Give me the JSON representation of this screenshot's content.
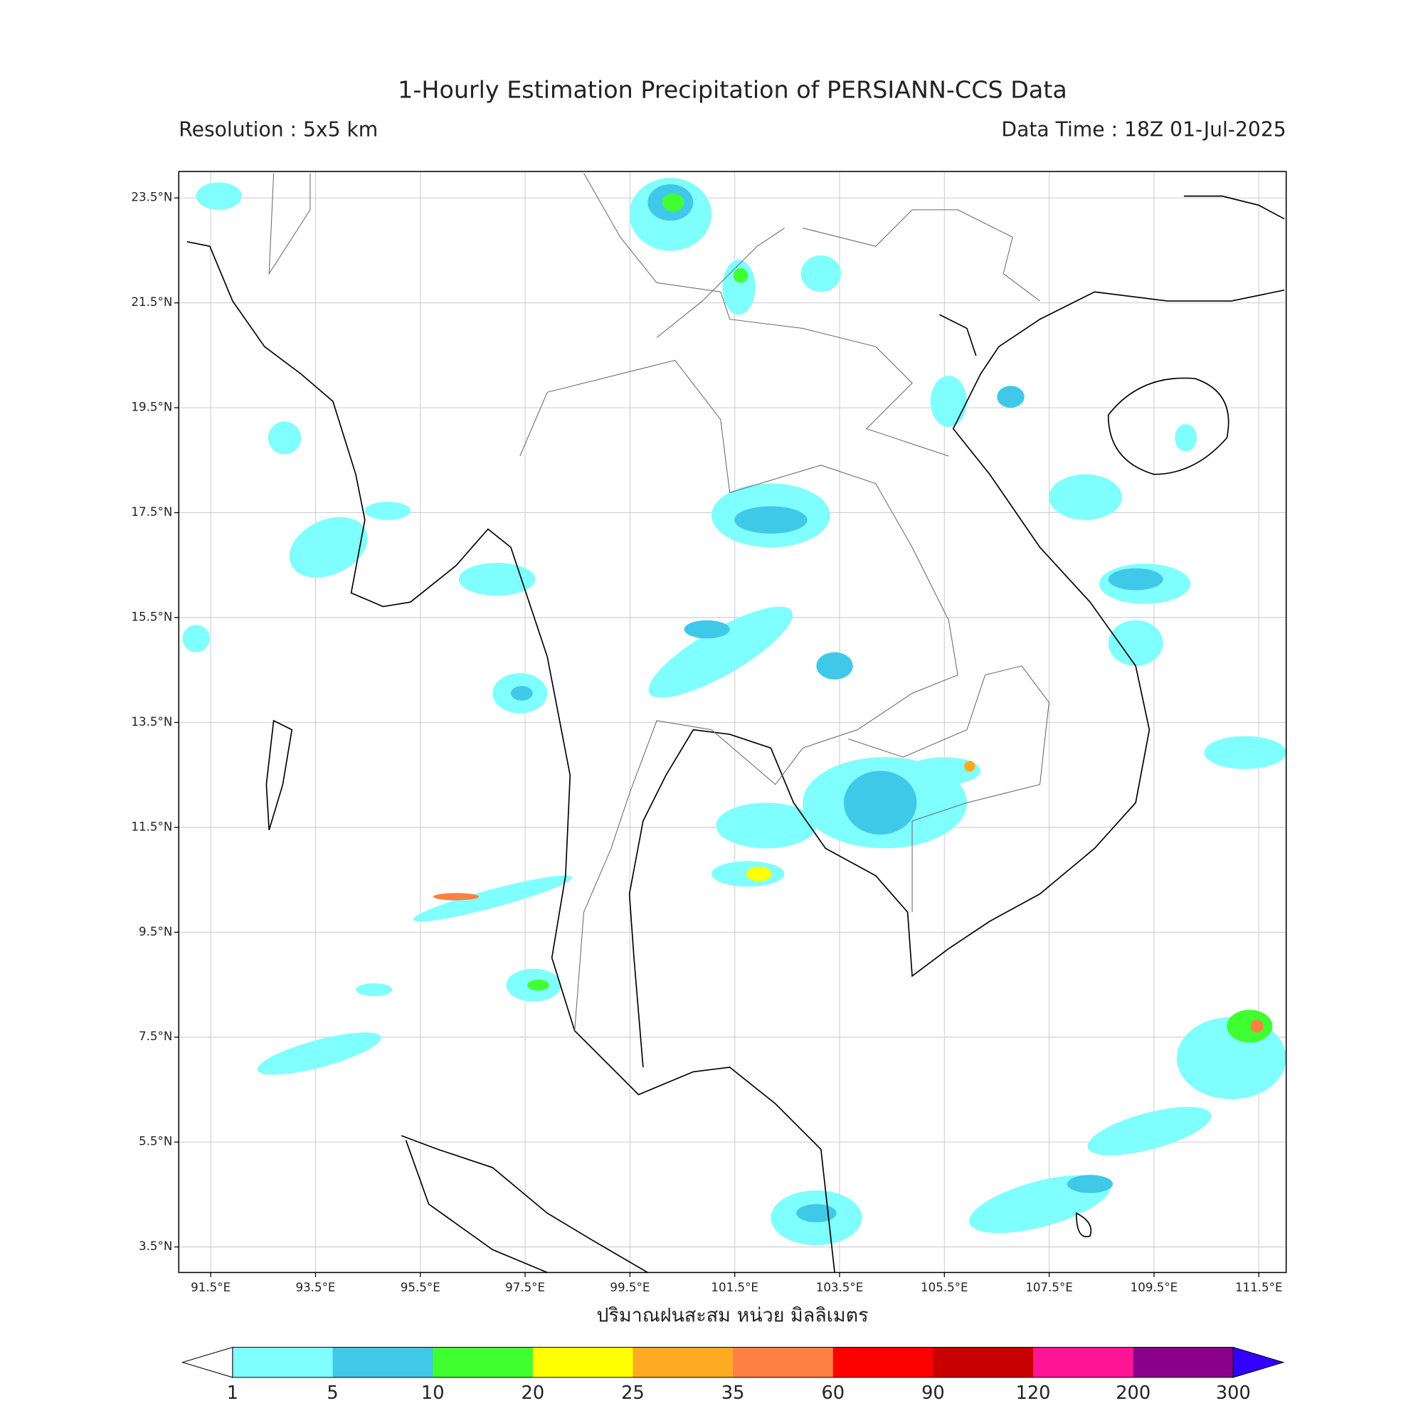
{
  "header": {
    "title": "1-Hourly Estimation Precipitation of PERSIANN-CCS Data",
    "resolution": "Resolution : 5x5 km",
    "data_time": "Data Time : 18Z 01-Jul-2025"
  },
  "map": {
    "lat_labels": [
      "23.5°N",
      "21.5°N",
      "19.5°N",
      "17.5°N",
      "15.5°N",
      "13.5°N",
      "11.5°N",
      "9.5°N",
      "7.5°N",
      "5.5°N",
      "3.5°N"
    ],
    "lon_labels": [
      "91.5°E",
      "93.5°E",
      "95.5°E",
      "97.5°E",
      "99.5°E",
      "101.5°E",
      "103.5°E",
      "105.5°E",
      "107.5°E",
      "109.5°E",
      "111.5°E"
    ],
    "grid": true,
    "x_label": "ปริมาณฝนสะสม หน่วย มิลลิเมตร"
  },
  "colorbar": {
    "ticks": [
      1,
      5,
      10,
      20,
      25,
      35,
      60,
      90,
      120,
      200,
      300
    ],
    "colors": [
      "#80ffff",
      "#40c8e8",
      "#40ff30",
      "#ffff00",
      "#ffaa20",
      "#ff8040",
      "#ff0000",
      "#c80000",
      "#ff1493",
      "#8b008b"
    ],
    "under_color": "#ffffff",
    "over_color": "#3300ff"
  }
}
